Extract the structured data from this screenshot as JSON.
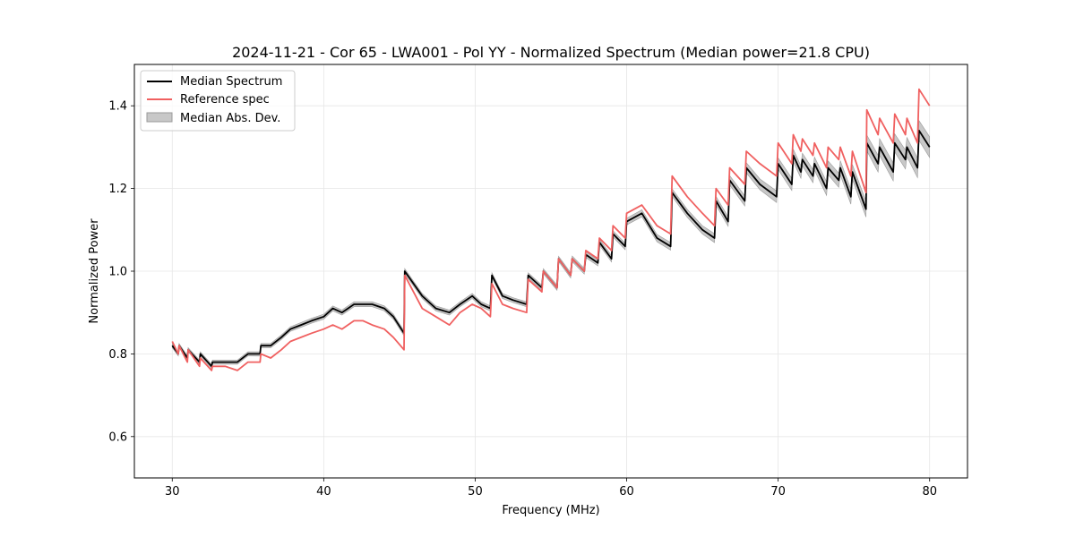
{
  "chart_data": {
    "type": "line",
    "title": "2024-11-21 - Cor 65 - LWA001 - Pol YY - Normalized Spectrum (Median power=21.8 CPU)",
    "xlabel": "Frequency (MHz)",
    "ylabel": "Normalized Power",
    "xlim": [
      27.5,
      82.5
    ],
    "ylim": [
      0.5,
      1.5
    ],
    "xticks": [
      30,
      40,
      50,
      60,
      70,
      80
    ],
    "yticks": [
      0.6,
      0.8,
      1.0,
      1.2,
      1.4
    ],
    "grid": true,
    "legend_position": "top-left",
    "legend": [
      "Median Spectrum",
      "Reference spec",
      "Median Abs. Dev."
    ],
    "colors": {
      "median": "#000000",
      "reference": "#f06060",
      "mad_fill": "#c8c8c8",
      "mad_edge": "#9a9a9a",
      "grid": "#e6e6e6"
    },
    "series": [
      {
        "name": "Median Spectrum",
        "x": [
          30.0,
          30.4,
          30.45,
          31.0,
          31.05,
          31.8,
          31.85,
          32.6,
          32.65,
          33.5,
          34.3,
          35.0,
          35.05,
          35.8,
          35.85,
          36.5,
          37.2,
          37.8,
          38.5,
          39.2,
          40.0,
          40.6,
          41.2,
          42.0,
          42.6,
          43.2,
          44.0,
          44.6,
          45.3,
          45.35,
          46.5,
          47.4,
          48.3,
          49.0,
          49.8,
          50.4,
          51.0,
          51.1,
          51.8,
          52.5,
          53.4,
          53.5,
          54.4,
          54.5,
          55.4,
          55.5,
          56.3,
          56.4,
          57.2,
          57.3,
          58.1,
          58.2,
          59.0,
          59.1,
          59.9,
          60.0,
          61.0,
          62.0,
          62.9,
          63.0,
          64.0,
          65.0,
          65.8,
          65.9,
          66.7,
          66.8,
          67.8,
          67.9,
          68.8,
          69.9,
          70.0,
          70.9,
          71.0,
          71.5,
          71.6,
          72.3,
          72.4,
          73.2,
          73.3,
          74.0,
          74.1,
          74.8,
          74.9,
          75.8,
          75.85,
          76.6,
          76.7,
          77.6,
          77.7,
          78.4,
          78.5,
          79.2,
          79.3,
          80.0
        ],
        "values": [
          0.82,
          0.8,
          0.82,
          0.79,
          0.81,
          0.78,
          0.8,
          0.77,
          0.78,
          0.78,
          0.78,
          0.8,
          0.8,
          0.8,
          0.82,
          0.82,
          0.84,
          0.86,
          0.87,
          0.88,
          0.89,
          0.91,
          0.9,
          0.92,
          0.92,
          0.92,
          0.91,
          0.89,
          0.85,
          1.0,
          0.94,
          0.91,
          0.9,
          0.92,
          0.94,
          0.92,
          0.91,
          0.99,
          0.94,
          0.93,
          0.92,
          0.99,
          0.96,
          1.0,
          0.96,
          1.03,
          0.99,
          1.03,
          1.0,
          1.04,
          1.02,
          1.07,
          1.03,
          1.09,
          1.06,
          1.12,
          1.14,
          1.08,
          1.06,
          1.19,
          1.14,
          1.1,
          1.08,
          1.17,
          1.12,
          1.22,
          1.17,
          1.25,
          1.21,
          1.18,
          1.26,
          1.21,
          1.28,
          1.24,
          1.27,
          1.23,
          1.26,
          1.2,
          1.25,
          1.22,
          1.25,
          1.18,
          1.24,
          1.15,
          1.31,
          1.26,
          1.3,
          1.24,
          1.31,
          1.27,
          1.3,
          1.25,
          1.34,
          1.3
        ]
      },
      {
        "name": "Reference spec",
        "x": [
          30.0,
          30.4,
          30.45,
          31.0,
          31.05,
          31.8,
          31.85,
          32.6,
          32.65,
          33.5,
          34.3,
          35.0,
          35.05,
          35.8,
          35.85,
          36.5,
          37.2,
          37.8,
          38.5,
          39.2,
          40.0,
          40.6,
          41.2,
          42.0,
          42.6,
          43.2,
          44.0,
          44.6,
          45.3,
          45.35,
          46.5,
          47.4,
          48.3,
          49.0,
          49.8,
          50.4,
          51.0,
          51.1,
          51.8,
          52.5,
          53.4,
          53.5,
          54.4,
          54.5,
          55.4,
          55.5,
          56.3,
          56.4,
          57.2,
          57.3,
          58.1,
          58.2,
          59.0,
          59.1,
          59.9,
          60.0,
          61.0,
          62.0,
          62.9,
          63.0,
          64.0,
          65.0,
          65.8,
          65.9,
          66.7,
          66.8,
          67.8,
          67.9,
          68.8,
          69.9,
          70.0,
          70.9,
          71.0,
          71.5,
          71.6,
          72.3,
          72.4,
          73.2,
          73.3,
          74.0,
          74.1,
          74.8,
          74.9,
          75.8,
          75.85,
          76.6,
          76.7,
          77.6,
          77.7,
          78.4,
          78.5,
          79.2,
          79.3,
          80.0
        ],
        "values": [
          0.83,
          0.8,
          0.82,
          0.78,
          0.81,
          0.77,
          0.79,
          0.76,
          0.77,
          0.77,
          0.76,
          0.78,
          0.78,
          0.78,
          0.8,
          0.79,
          0.81,
          0.83,
          0.84,
          0.85,
          0.86,
          0.87,
          0.86,
          0.88,
          0.88,
          0.87,
          0.86,
          0.84,
          0.81,
          0.99,
          0.91,
          0.89,
          0.87,
          0.9,
          0.92,
          0.91,
          0.89,
          0.97,
          0.92,
          0.91,
          0.9,
          0.98,
          0.95,
          1.0,
          0.96,
          1.03,
          0.99,
          1.03,
          1.0,
          1.05,
          1.03,
          1.08,
          1.05,
          1.11,
          1.08,
          1.14,
          1.16,
          1.11,
          1.09,
          1.23,
          1.18,
          1.14,
          1.11,
          1.2,
          1.16,
          1.25,
          1.21,
          1.29,
          1.26,
          1.23,
          1.31,
          1.26,
          1.33,
          1.29,
          1.32,
          1.28,
          1.31,
          1.25,
          1.3,
          1.27,
          1.3,
          1.23,
          1.29,
          1.19,
          1.39,
          1.33,
          1.37,
          1.31,
          1.38,
          1.33,
          1.37,
          1.31,
          1.44,
          1.4
        ]
      }
    ],
    "mad_band": {
      "x": [
        30.0,
        35.0,
        40.0,
        45.3,
        50.0,
        55.0,
        60.0,
        65.0,
        70.0,
        75.0,
        80.0
      ],
      "half_width": [
        0.005,
        0.005,
        0.006,
        0.006,
        0.006,
        0.006,
        0.008,
        0.01,
        0.014,
        0.018,
        0.025
      ]
    }
  }
}
